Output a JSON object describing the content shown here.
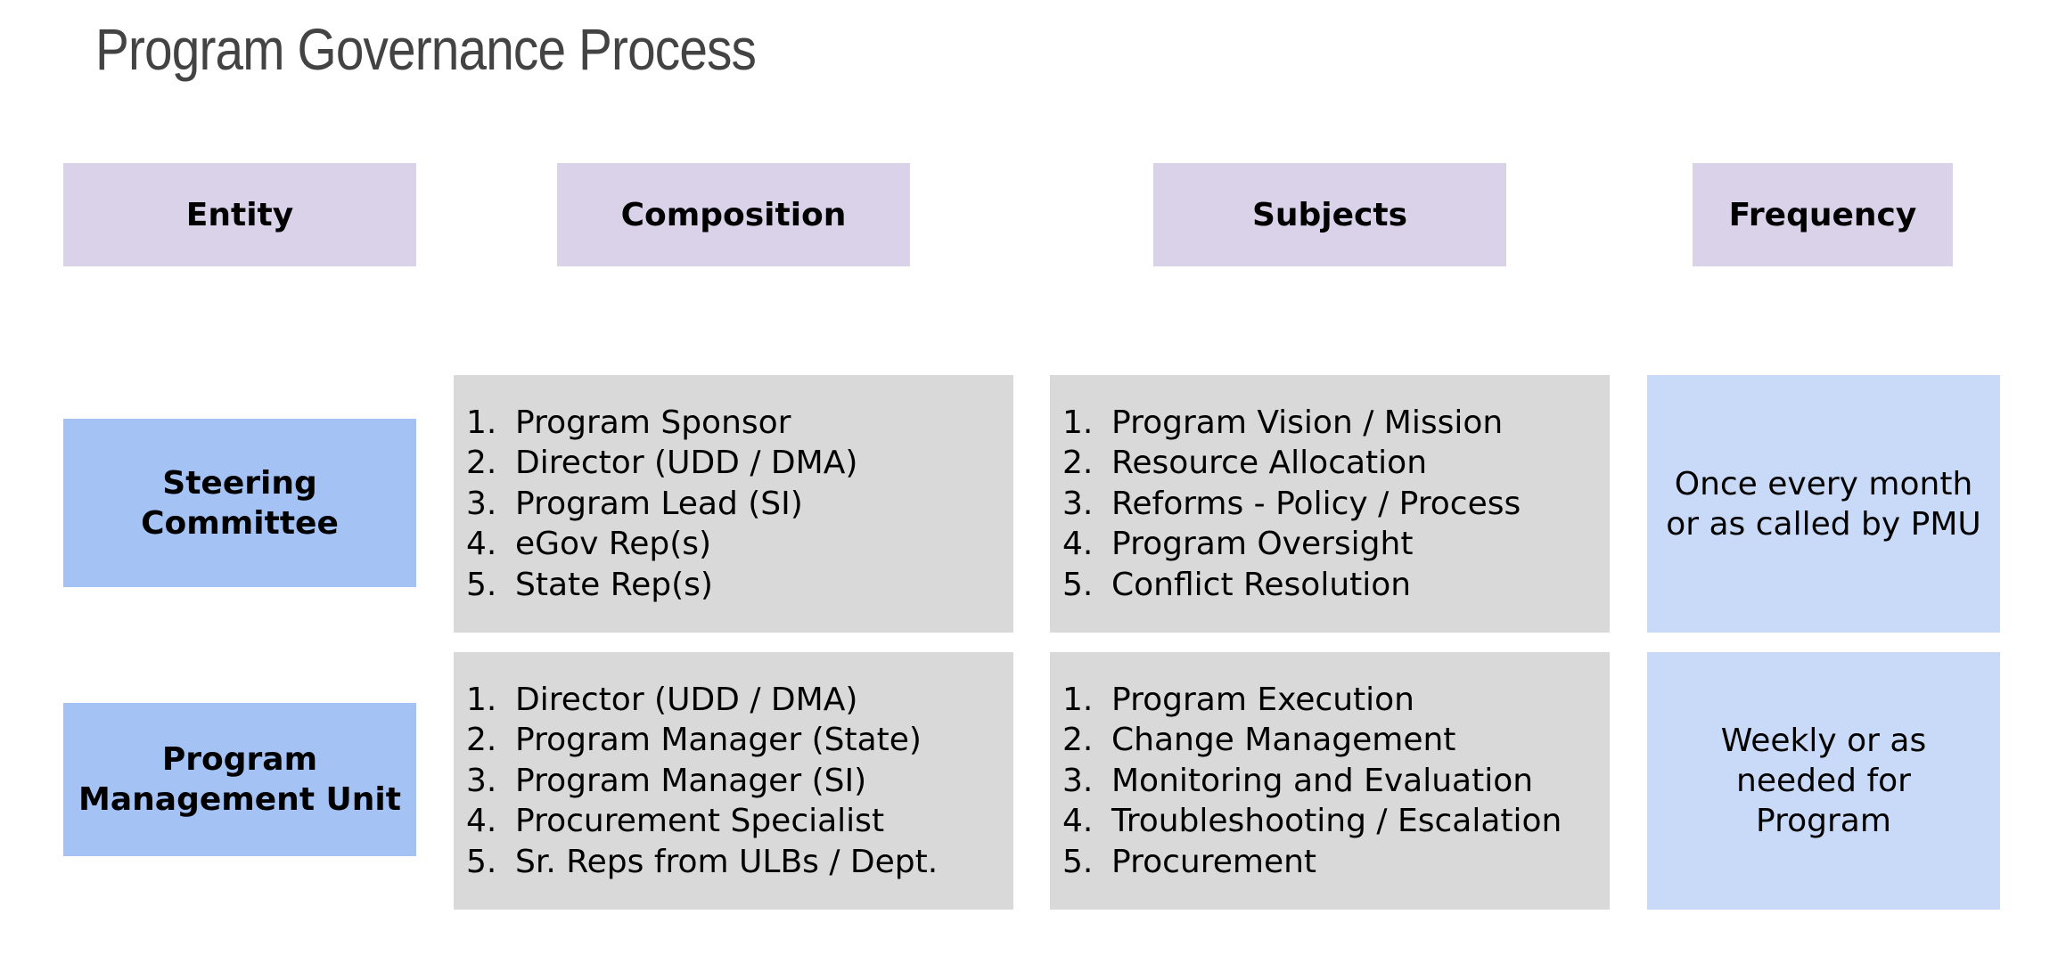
{
  "title": "Program Governance Process",
  "headers": {
    "entity": "Entity",
    "composition": "Composition",
    "subjects": "Subjects",
    "frequency": "Frequency"
  },
  "rows": [
    {
      "entity_line1": "Steering",
      "entity_line2": "Committee",
      "composition": [
        "Program Sponsor",
        "Director (UDD / DMA)",
        "Program Lead (SI)",
        "eGov Rep(s)",
        "State Rep(s)"
      ],
      "subjects": [
        "Program Vision / Mission",
        "Resource Allocation",
        "Reforms - Policy / Process",
        "Program Oversight",
        "Conflict Resolution"
      ],
      "frequency_line1": "Once every month",
      "frequency_line2": "or as called by PMU",
      "frequency_line3": ""
    },
    {
      "entity_line1": "Program",
      "entity_line2": "Management Unit",
      "composition": [
        "Director (UDD / DMA)",
        "Program Manager (State)",
        "Program Manager (SI)",
        "Procurement Specialist",
        "Sr. Reps from ULBs / Dept."
      ],
      "subjects": [
        "Program Execution",
        "Change Management",
        "Monitoring and Evaluation",
        "Troubleshooting / Escalation",
        "Procurement"
      ],
      "frequency_line1": "Weekly or as",
      "frequency_line2": "needed for",
      "frequency_line3": "Program"
    }
  ],
  "numbers": [
    "1.",
    "2.",
    "3.",
    "4.",
    "5."
  ],
  "colors": {
    "header": "#d9d2e9",
    "entity": "#a4c2f4",
    "list": "#d9d9d9",
    "frequency": "#c9daf8",
    "title": "#434343"
  }
}
